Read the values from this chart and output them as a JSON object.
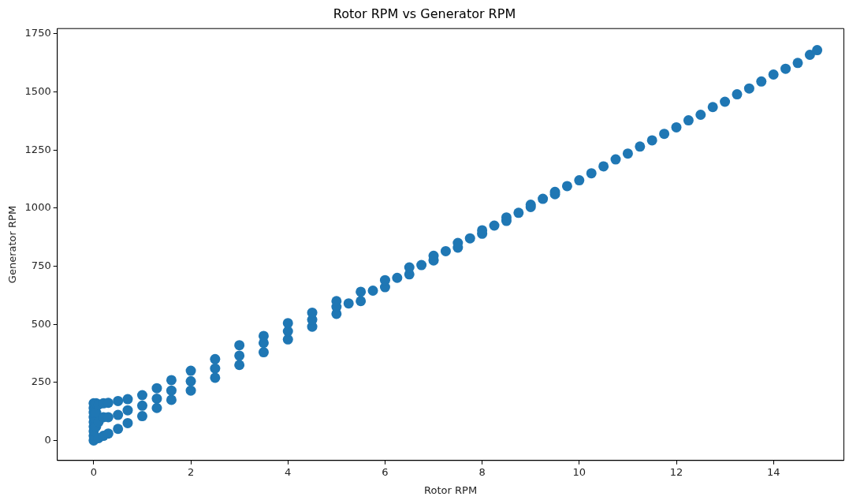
{
  "chart_data": {
    "type": "scatter",
    "title": "Rotor RPM vs Generator RPM",
    "xlabel": "Rotor RPM",
    "ylabel": "Generator RPM",
    "xlim": [
      -0.75,
      15.45
    ],
    "xticks": [
      0,
      2,
      4,
      6,
      8,
      10,
      12,
      14
    ],
    "ylim": [
      -86,
      1773
    ],
    "yticks": [
      0,
      250,
      500,
      750,
      1000,
      1250,
      1500,
      1750
    ],
    "grid": false,
    "legend": false,
    "marker": "circle",
    "series": [
      {
        "color": "#1f77b4",
        "x": [
          0,
          0,
          0,
          0,
          0,
          0,
          0,
          0,
          0,
          0.05,
          0.05,
          0.05,
          0.1,
          0.1,
          0.1,
          0.2,
          0.2,
          0.2,
          0.3,
          0.3,
          0.3,
          0.5,
          0.5,
          0.5,
          0.7,
          0.7,
          0.7,
          1,
          1,
          1,
          1.3,
          1.3,
          1.3,
          1.6,
          1.6,
          1.6,
          2,
          2,
          2,
          2.5,
          2.5,
          2.5,
          3,
          3,
          3,
          3.5,
          3.5,
          3.5,
          4,
          4,
          4,
          4.5,
          4.5,
          4.5,
          5,
          5,
          5,
          5.25,
          5.5,
          5.5,
          5.75,
          6,
          6,
          6.25,
          6.5,
          6.5,
          6.75,
          7,
          7,
          7.25,
          7.5,
          7.5,
          7.75,
          8,
          8,
          8.25,
          8.5,
          8.5,
          8.75,
          9,
          9,
          9.25,
          9.5,
          9.5,
          9.75,
          10,
          10.25,
          10.5,
          10.75,
          11,
          11.25,
          11.5,
          11.75,
          12,
          12.25,
          12.5,
          12.75,
          13,
          13.25,
          13.5,
          13.75,
          14,
          14.25,
          14.5,
          14.75,
          14.9
        ],
        "values": [
          0,
          20,
          40,
          60,
          80,
          100,
          120,
          140,
          160,
          60,
          120,
          160,
          10,
          80,
          155,
          20,
          100,
          160,
          30,
          100,
          162,
          50,
          110,
          170,
          75,
          130,
          178,
          105,
          150,
          195,
          140,
          180,
          225,
          175,
          215,
          260,
          215,
          255,
          300,
          270,
          310,
          350,
          325,
          365,
          410,
          380,
          420,
          450,
          435,
          470,
          505,
          490,
          520,
          550,
          545,
          575,
          600,
          590,
          600,
          640,
          645,
          660,
          690,
          700,
          715,
          745,
          755,
          775,
          795,
          815,
          830,
          850,
          870,
          890,
          905,
          925,
          945,
          960,
          980,
          1005,
          1015,
          1040,
          1060,
          1070,
          1095,
          1120,
          1150,
          1180,
          1210,
          1235,
          1265,
          1292,
          1320,
          1348,
          1378,
          1402,
          1435,
          1458,
          1490,
          1515,
          1545,
          1575,
          1600,
          1625,
          1660,
          1680
        ]
      }
    ]
  }
}
